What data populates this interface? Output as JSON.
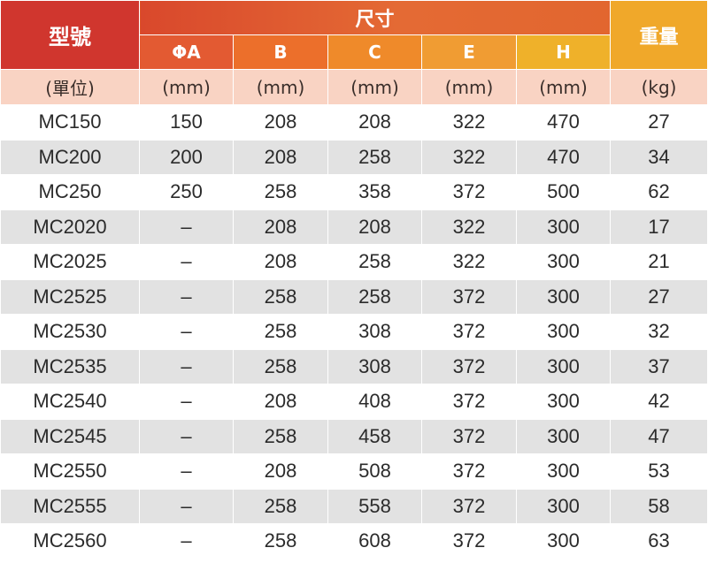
{
  "header": {
    "model": "型號",
    "dimensions": "尺寸",
    "weight": "重量",
    "columns": [
      "ΦA",
      "B",
      "C",
      "E",
      "H"
    ]
  },
  "units": [
    "(單位)",
    "(mm)",
    "(mm)",
    "(mm)",
    "(mm)",
    "(mm)",
    "(kg)"
  ],
  "rows": [
    [
      "MC150",
      "150",
      "208",
      "208",
      "322",
      "470",
      "27"
    ],
    [
      "MC200",
      "200",
      "208",
      "258",
      "322",
      "470",
      "34"
    ],
    [
      "MC250",
      "250",
      "258",
      "358",
      "372",
      "500",
      "62"
    ],
    [
      "MC2020",
      "–",
      "208",
      "208",
      "322",
      "300",
      "17"
    ],
    [
      "MC2025",
      "–",
      "208",
      "258",
      "322",
      "300",
      "21"
    ],
    [
      "MC2525",
      "–",
      "258",
      "258",
      "372",
      "300",
      "27"
    ],
    [
      "MC2530",
      "–",
      "258",
      "308",
      "372",
      "300",
      "32"
    ],
    [
      "MC2535",
      "–",
      "258",
      "308",
      "372",
      "300",
      "37"
    ],
    [
      "MC2540",
      "–",
      "208",
      "408",
      "372",
      "300",
      "42"
    ],
    [
      "MC2545",
      "–",
      "258",
      "458",
      "372",
      "300",
      "47"
    ],
    [
      "MC2550",
      "–",
      "208",
      "508",
      "372",
      "300",
      "53"
    ],
    [
      "MC2555",
      "–",
      "258",
      "558",
      "372",
      "300",
      "58"
    ],
    [
      "MC2560",
      "–",
      "258",
      "608",
      "372",
      "300",
      "63"
    ]
  ],
  "colors": {
    "model_header": "#d0362e",
    "weight_header": "#f0a82a",
    "units_row": "#f9d3c3",
    "stripe": "#e2e2e2"
  }
}
